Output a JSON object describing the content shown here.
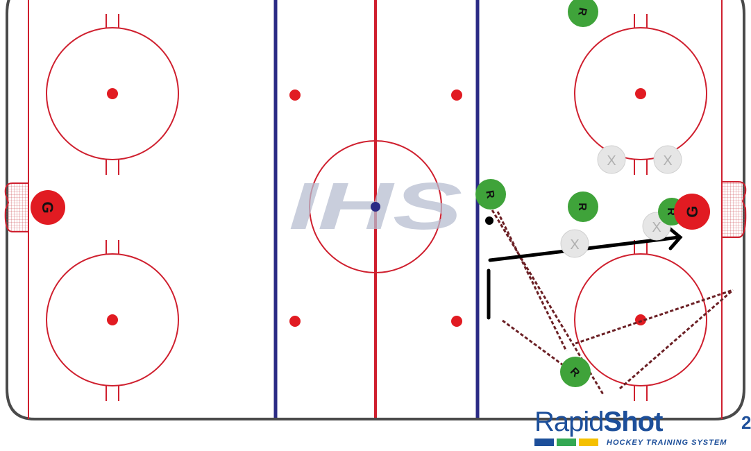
{
  "colors": {
    "red_line": "#cf1f2e",
    "blue_line": "#2a2a85",
    "board": "#4a4a4a",
    "player_green": "#3fa33a",
    "goalie_red": "#e11b22",
    "defender_grey": "#e6e6e6",
    "pass_dashed": "#6b1f24",
    "skate_arrow": "#000000",
    "watermark": "#b7bdd0",
    "brand_blue": "#1d4f9a",
    "brand_green": "#34a853",
    "brand_yellow": "#f5c000"
  },
  "watermark": {
    "text": "IHS"
  },
  "goalies": [
    {
      "label": "G",
      "side": "left"
    },
    {
      "label": "G",
      "side": "right"
    }
  ],
  "players": [
    {
      "label": "R",
      "role": "forward-top"
    },
    {
      "label": "R",
      "role": "forward-slot"
    },
    {
      "label": "R",
      "role": "forward-blue-line"
    },
    {
      "label": "R",
      "role": "forward-net-front"
    },
    {
      "label": "R",
      "role": "forward-corner"
    }
  ],
  "defenders": [
    {
      "label": "X"
    },
    {
      "label": "X"
    },
    {
      "label": "X"
    },
    {
      "label": "X"
    }
  ],
  "brand": {
    "name_part1": "Rapid",
    "name_part2": "Shot",
    "name_suffix": "2",
    "tagline": "HOCKEY TRAINING SYSTEM",
    "bar_colors": [
      "#1d4f9a",
      "#34a853",
      "#f5c000"
    ]
  }
}
